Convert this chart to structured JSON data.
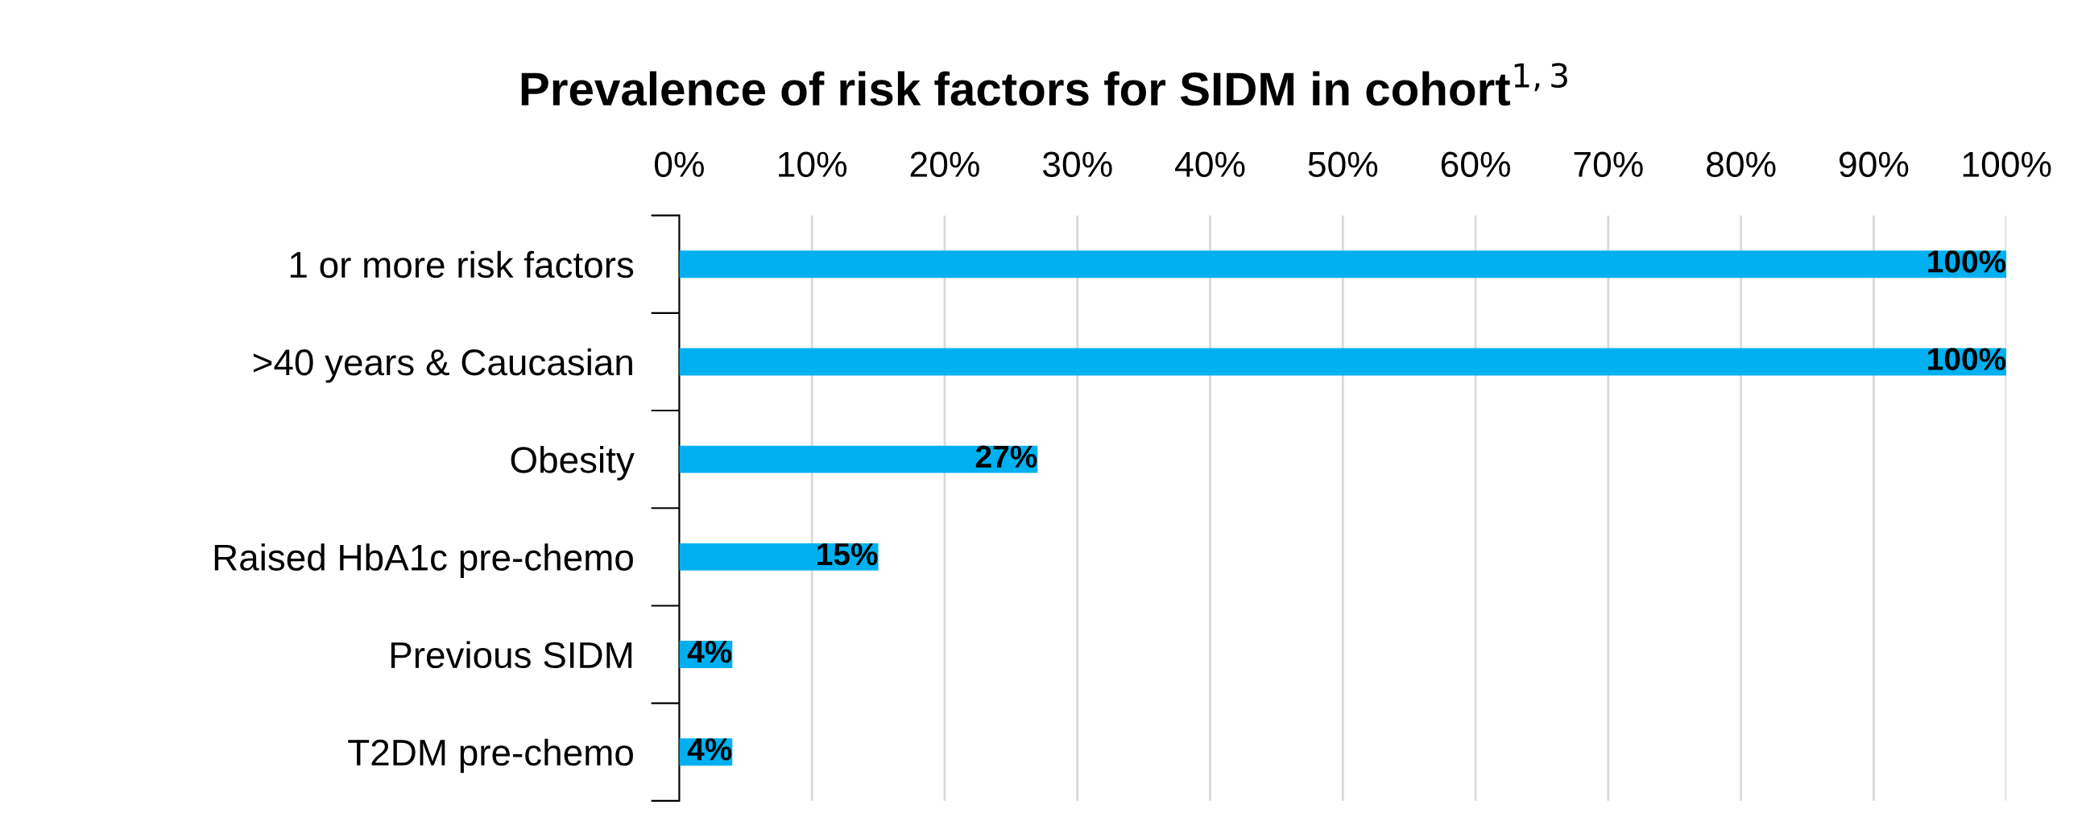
{
  "chart_data": {
    "type": "bar",
    "orientation": "horizontal",
    "title": "Prevalence of risk factors for SIDM in cohort$^{1,3}$",
    "categories": [
      "1 or more risk factors",
      ">40 years & Caucasian",
      "Obesity",
      "Raised HbA1c pre-chemo",
      "Previous SIDM",
      "T2DM pre-chemo"
    ],
    "values": [
      100,
      100,
      27,
      15,
      4,
      4
    ],
    "value_labels": [
      "100%",
      "100%",
      "27%",
      "15%",
      "4%",
      "4%"
    ],
    "color": "#00b0f0",
    "xlim": [
      0,
      100
    ],
    "xticks": [
      {
        "value": 0,
        "label": "0%"
      },
      {
        "value": 10,
        "label": "10%"
      },
      {
        "value": 20,
        "label": "20%"
      },
      {
        "value": 30,
        "label": "30%"
      },
      {
        "value": 40,
        "label": "40%"
      },
      {
        "value": 50,
        "label": "50%"
      },
      {
        "value": 60,
        "label": "60%"
      },
      {
        "value": 70,
        "label": "70%"
      },
      {
        "value": 80,
        "label": "80%"
      },
      {
        "value": 90,
        "label": "90%"
      },
      {
        "value": 100,
        "label": "100%"
      }
    ],
    "grid": "x"
  }
}
